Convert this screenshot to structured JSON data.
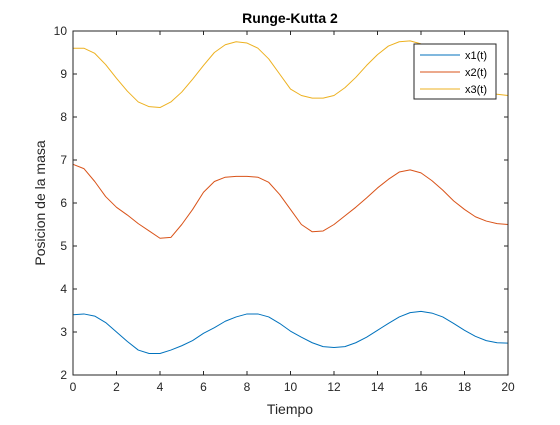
{
  "chart_data": {
    "type": "line",
    "title": "Runge-Kutta 2",
    "xlabel": "Tiempo",
    "ylabel": "Posicion de la masa",
    "xlim": [
      0,
      20
    ],
    "ylim": [
      2,
      10
    ],
    "xticks": [
      0,
      2,
      4,
      6,
      8,
      10,
      12,
      14,
      16,
      18,
      20
    ],
    "yticks": [
      2,
      3,
      4,
      5,
      6,
      7,
      8,
      9,
      10
    ],
    "grid": false,
    "legend_position": "top-right",
    "series": [
      {
        "name": "x1(t)",
        "color": "#0072BD",
        "x": [
          0,
          0.5,
          1,
          1.5,
          2,
          2.5,
          3,
          3.5,
          4,
          4.5,
          5,
          5.5,
          6,
          6.5,
          7,
          7.5,
          8,
          8.5,
          9,
          9.5,
          10,
          10.5,
          11,
          11.5,
          12,
          12.5,
          13,
          13.5,
          14,
          14.5,
          15,
          15.5,
          16,
          16.5,
          17,
          17.5,
          18,
          18.5,
          19,
          19.5,
          20
        ],
        "values": [
          3.4,
          3.42,
          3.37,
          3.22,
          3.0,
          2.78,
          2.58,
          2.5,
          2.5,
          2.58,
          2.68,
          2.8,
          2.97,
          3.1,
          3.25,
          3.35,
          3.42,
          3.42,
          3.35,
          3.2,
          3.02,
          2.88,
          2.75,
          2.66,
          2.64,
          2.66,
          2.75,
          2.88,
          3.04,
          3.2,
          3.35,
          3.45,
          3.48,
          3.44,
          3.35,
          3.2,
          3.04,
          2.9,
          2.8,
          2.75,
          2.74
        ]
      },
      {
        "name": "x2(t)",
        "color": "#D95319",
        "x": [
          0,
          0.5,
          1,
          1.5,
          2,
          2.5,
          3,
          3.5,
          4,
          4.5,
          5,
          5.5,
          6,
          6.5,
          7,
          7.5,
          8,
          8.5,
          9,
          9.5,
          10,
          10.5,
          11,
          11.5,
          12,
          12.5,
          13,
          13.5,
          14,
          14.5,
          15,
          15.5,
          16,
          16.5,
          17,
          17.5,
          18,
          18.5,
          19,
          19.5,
          20
        ],
        "values": [
          6.9,
          6.8,
          6.5,
          6.15,
          5.9,
          5.72,
          5.52,
          5.35,
          5.18,
          5.2,
          5.5,
          5.85,
          6.25,
          6.5,
          6.6,
          6.62,
          6.62,
          6.6,
          6.48,
          6.2,
          5.85,
          5.5,
          5.33,
          5.35,
          5.5,
          5.7,
          5.9,
          6.12,
          6.35,
          6.55,
          6.72,
          6.77,
          6.7,
          6.52,
          6.3,
          6.05,
          5.85,
          5.68,
          5.58,
          5.52,
          5.5
        ]
      },
      {
        "name": "x3(t)",
        "color": "#EDB120",
        "x": [
          0,
          0.5,
          1,
          1.5,
          2,
          2.5,
          3,
          3.5,
          4,
          4.5,
          5,
          5.5,
          6,
          6.5,
          7,
          7.5,
          8,
          8.5,
          9,
          9.5,
          10,
          10.5,
          11,
          11.5,
          12,
          12.5,
          13,
          13.5,
          14,
          14.5,
          15,
          15.5,
          16,
          16.5,
          17,
          17.5,
          18,
          18.5,
          19,
          19.5,
          20
        ],
        "values": [
          9.6,
          9.6,
          9.48,
          9.22,
          8.9,
          8.6,
          8.35,
          8.24,
          8.22,
          8.35,
          8.58,
          8.88,
          9.2,
          9.5,
          9.68,
          9.75,
          9.72,
          9.6,
          9.35,
          9.0,
          8.65,
          8.5,
          8.44,
          8.44,
          8.5,
          8.68,
          8.92,
          9.2,
          9.45,
          9.65,
          9.75,
          9.77,
          9.7,
          9.55,
          9.32,
          9.05,
          8.82,
          8.68,
          8.58,
          8.53,
          8.5
        ]
      }
    ]
  }
}
